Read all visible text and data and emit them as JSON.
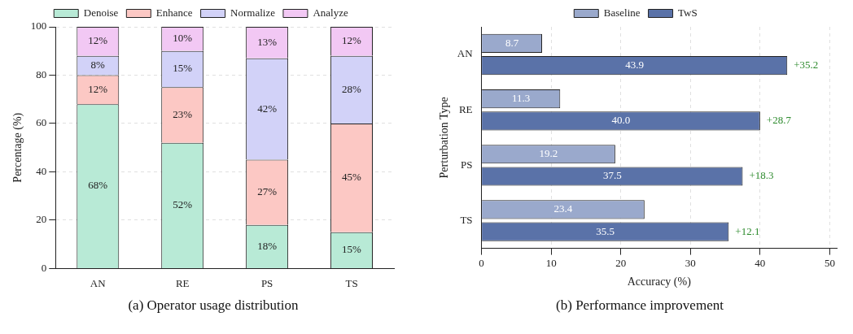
{
  "chart_data": [
    {
      "type": "bar",
      "stacked": true,
      "categories": [
        "AN",
        "RE",
        "PS",
        "TS"
      ],
      "ylabel": "Percentage (%)",
      "ylim": [
        0,
        100
      ],
      "yticks": [
        0,
        20,
        40,
        60,
        80,
        100
      ],
      "grid": "y",
      "legend": "top",
      "annotations": [
        "(a) Operator usage distribution"
      ],
      "series": [
        {
          "name": "Denoise",
          "color": "#b8ead6",
          "values": [
            68,
            52,
            18,
            15
          ],
          "value_labels": [
            "68%",
            "52%",
            "18%",
            "15%"
          ]
        },
        {
          "name": "Enhance",
          "color": "#fcc8c4",
          "values": [
            12,
            23,
            27,
            45
          ],
          "value_labels": [
            "12%",
            "23%",
            "27%",
            "45%"
          ]
        },
        {
          "name": "Normalize",
          "color": "#d2d2f8",
          "values": [
            8,
            15,
            42,
            28
          ],
          "value_labels": [
            "8%",
            "15%",
            "42%",
            "28%"
          ]
        },
        {
          "name": "Analyze",
          "color": "#f2c8f4",
          "values": [
            12,
            10,
            13,
            12
          ],
          "value_labels": [
            "12%",
            "10%",
            "13%",
            "12%"
          ]
        }
      ]
    },
    {
      "type": "bar",
      "orientation": "horizontal",
      "categories": [
        "AN",
        "RE",
        "PS",
        "TS"
      ],
      "xlabel": "Accuracy (%)",
      "ylabel": "Perturbation Type",
      "xlim": [
        0,
        51
      ],
      "xticks": [
        0,
        10,
        20,
        30,
        40,
        50
      ],
      "grid": "x",
      "legend": "top",
      "annotations": [
        {
          "text": "+35.2",
          "x": 43.9,
          "y": "AN"
        },
        {
          "text": "+28.7",
          "x": 40.0,
          "y": "RE"
        },
        {
          "text": "+18.3",
          "x": 37.5,
          "y": "PS"
        },
        {
          "text": "+12.1",
          "x": 35.5,
          "y": "TS"
        },
        "(b) Performance improvement"
      ],
      "series": [
        {
          "name": "Baseline",
          "color": "#9aa9cc",
          "values": [
            8.7,
            11.3,
            19.2,
            23.4
          ],
          "value_labels": [
            "8.7",
            "11.3",
            "19.2",
            "23.4"
          ]
        },
        {
          "name": "TwS",
          "color": "#5a72a8",
          "values": [
            43.9,
            40.0,
            37.5,
            35.5
          ],
          "value_labels": [
            "43.9",
            "40.0",
            "37.5",
            "35.5"
          ]
        }
      ]
    }
  ]
}
